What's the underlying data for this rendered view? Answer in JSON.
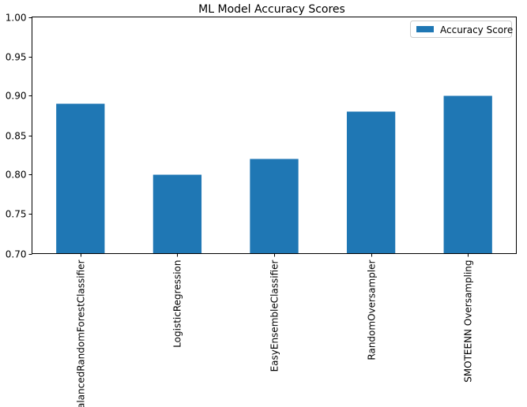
{
  "chart_data": {
    "type": "bar",
    "title": "ML Model Accuracy Scores",
    "xlabel": "",
    "ylabel": "",
    "categories": [
      "BalancedRandomForestClassifier",
      "LogisticRegression",
      "EasyEnsembleClassifier",
      "RandomOversampler",
      "SMOTEENN Oversampling"
    ],
    "series": [
      {
        "name": "Accuracy Score",
        "values": [
          0.89,
          0.8,
          0.82,
          0.88,
          0.9
        ],
        "color": "#1f77b4"
      }
    ],
    "ylim": [
      0.7,
      1.0
    ],
    "yticks": [
      "0.70",
      "0.75",
      "0.80",
      "0.85",
      "0.90",
      "0.95",
      "1.00"
    ],
    "grid": false,
    "legend_position": "top-right"
  }
}
